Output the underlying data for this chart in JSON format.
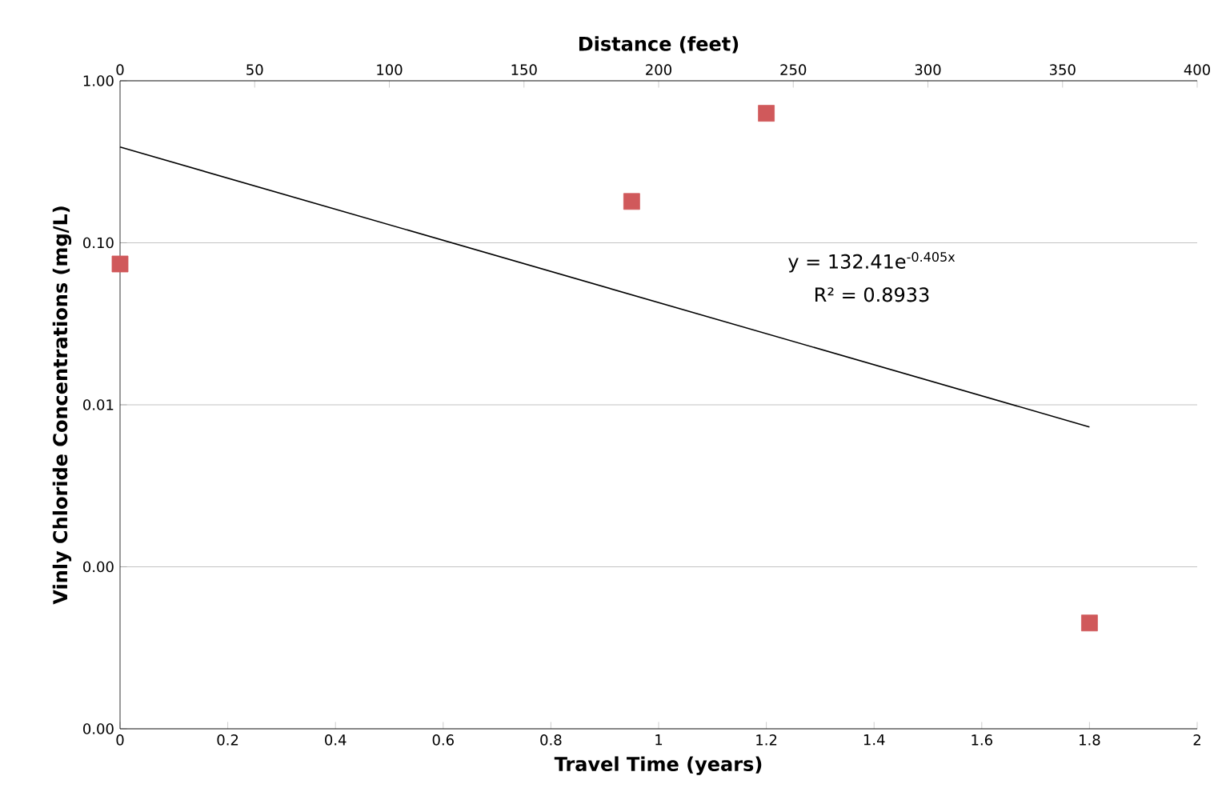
{
  "chart_data": {
    "type": "scatter",
    "xlabel": "Travel Time (years)",
    "x2label": "Distance (feet)",
    "ylabel": "Vinly Chloride Concentrations (mg/L)",
    "series": [
      {
        "color": "#d0595b",
        "marker": "square",
        "x": [
          0,
          0.95,
          1.2,
          1.8
        ],
        "values": [
          0.074,
          0.18,
          0.63,
          0.00045
        ]
      },
      {
        "type": "line",
        "color": "#000000",
        "marker": "none",
        "x": [
          0,
          1.8
        ],
        "values": [
          0.39,
          0.0073
        ]
      }
    ],
    "xlim": [
      0,
      2
    ],
    "xticks": [
      0,
      0.2,
      0.4,
      0.6,
      0.8,
      1,
      1.2,
      1.4,
      1.6,
      1.8,
      2
    ],
    "x2lim": [
      0,
      400
    ],
    "x2ticks": [
      0,
      50,
      100,
      150,
      200,
      250,
      300,
      350,
      400
    ],
    "ylim": [
      0.0001,
      1
    ],
    "log": "y",
    "yticks": [
      {
        "value": 1,
        "label": "1.00"
      },
      {
        "value": 0.1,
        "label": "0.10"
      },
      {
        "value": 0.01,
        "label": "0.01"
      },
      {
        "value": 0.001,
        "label": "0.00"
      },
      {
        "value": 0.0001,
        "label": "0.00"
      }
    ],
    "grid": "y",
    "annotations": [
      "y = 132.41e$^{-0.405x}$",
      "R² = 0.8933"
    ]
  }
}
